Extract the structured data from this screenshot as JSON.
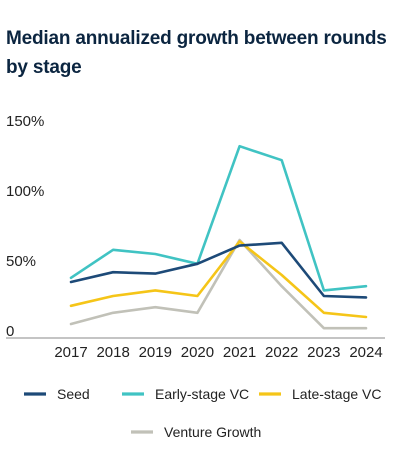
{
  "chart_data": {
    "type": "line",
    "title": "Median annualized growth between rounds by stage",
    "xlabel": "",
    "ylabel": "",
    "x": [
      "2017",
      "2018",
      "2019",
      "2020",
      "2021",
      "2022",
      "2023",
      "2024"
    ],
    "y_ticks": [
      {
        "value": 0,
        "label": "0"
      },
      {
        "value": 50,
        "label": "50%"
      },
      {
        "value": 100,
        "label": "100%"
      },
      {
        "value": 150,
        "label": "150%"
      }
    ],
    "ylim": [
      0,
      150
    ],
    "grid": false,
    "legend_position": "bottom",
    "series": [
      {
        "name": "Seed",
        "color": "#1d4a78",
        "values": [
          35,
          42,
          41,
          48,
          61,
          63,
          25,
          24
        ]
      },
      {
        "name": "Early-stage VC",
        "color": "#40c3c3",
        "values": [
          38,
          58,
          55,
          48,
          132,
          122,
          29,
          32
        ]
      },
      {
        "name": "Late-stage VC",
        "color": "#f5c518",
        "values": [
          18,
          25,
          29,
          25,
          64,
          40,
          13,
          10
        ]
      },
      {
        "name": "Venture Growth",
        "color": "#c1c1b8",
        "values": [
          5,
          13,
          17,
          13,
          65,
          32,
          2,
          2
        ]
      }
    ]
  }
}
